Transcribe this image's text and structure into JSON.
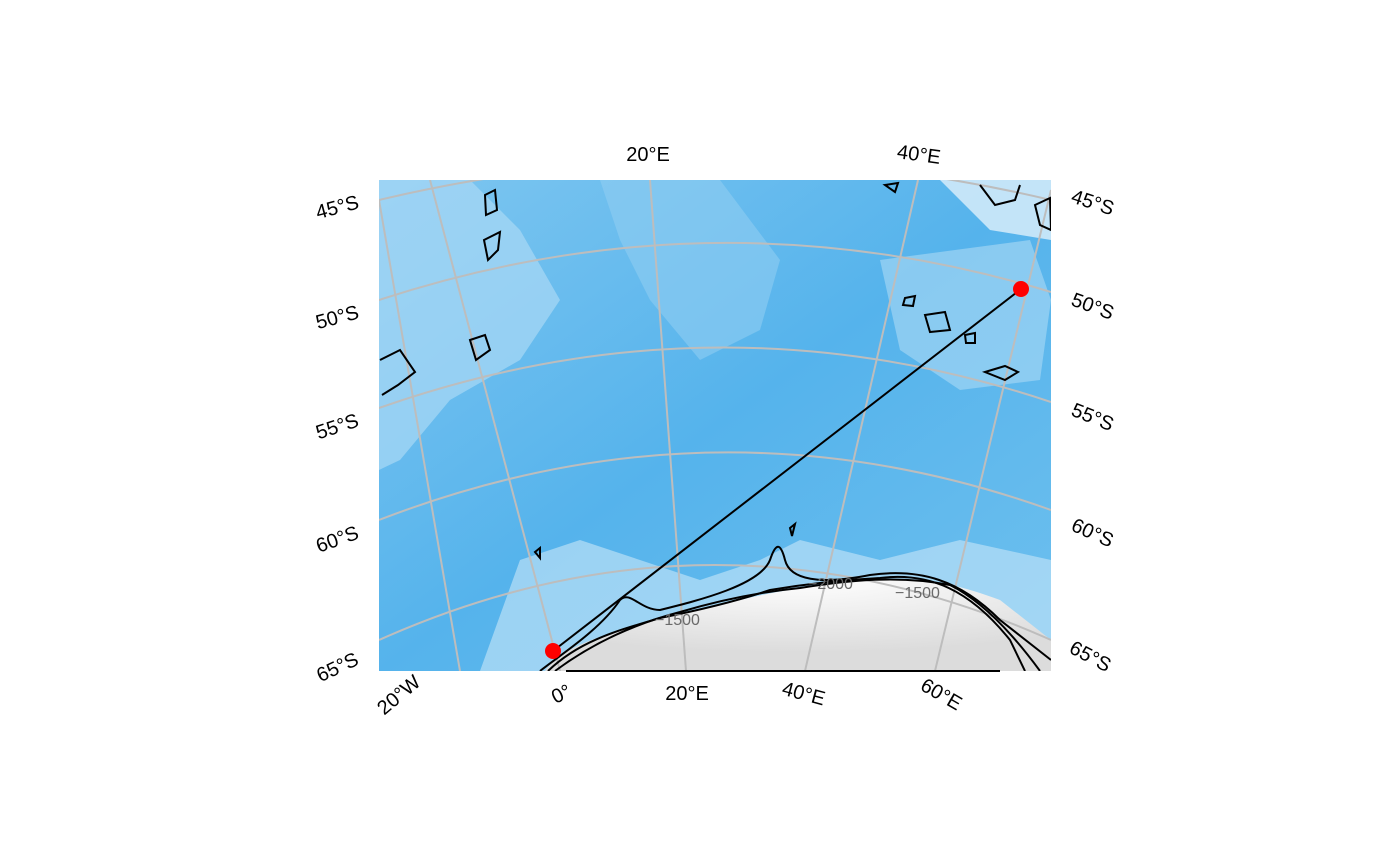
{
  "map": {
    "colors": {
      "ocean_deep": "#4fb0ea",
      "ocean_mid": "#7cc4ef",
      "ocean_shallow": "#c7e6f8",
      "ice": "#f2f3f4",
      "graticule": "#bdbdbd",
      "contour": "#000000",
      "route": "#000000",
      "marker": "#ff0000"
    },
    "top_lon_labels": [
      "20°E",
      "40°E"
    ],
    "bottom_lon_labels": [
      "20°W",
      "0°",
      "20°E",
      "40°E",
      "60°E"
    ],
    "left_lat_labels": [
      "45°S",
      "50°S",
      "55°S",
      "60°S",
      "65°S"
    ],
    "right_lat_labels": [
      "45°S",
      "50°S",
      "55°S",
      "60°S",
      "65°S"
    ],
    "contour_labels": [
      "−2000",
      "−1500",
      "−1500"
    ],
    "route": {
      "start": {
        "lon": 0,
        "lat": -65
      },
      "end": {
        "lon": 58,
        "lat": -49
      }
    },
    "markers": [
      {
        "name": "start",
        "lon": 0,
        "lat": -65
      },
      {
        "name": "end",
        "lon": 58,
        "lat": -49
      }
    ]
  }
}
